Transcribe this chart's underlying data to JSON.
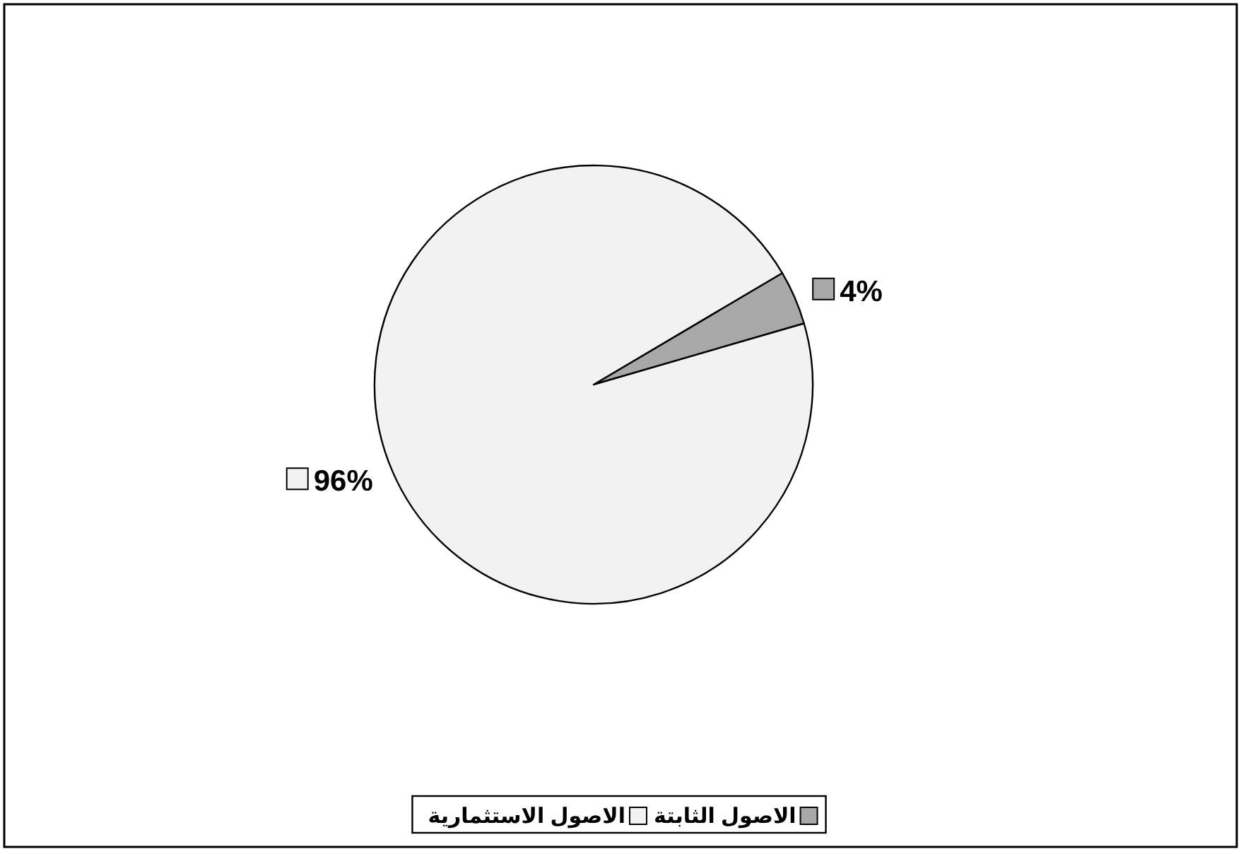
{
  "chart_data": {
    "type": "pie",
    "categories": [
      "الاصول الثابتة",
      "الاصول الاستثمارية"
    ],
    "values": [
      4,
      96
    ],
    "colors": [
      "#a8a8a8",
      "#f2f2f2"
    ],
    "value_labels": [
      "4%",
      "96%"
    ],
    "legend": "bottom"
  }
}
